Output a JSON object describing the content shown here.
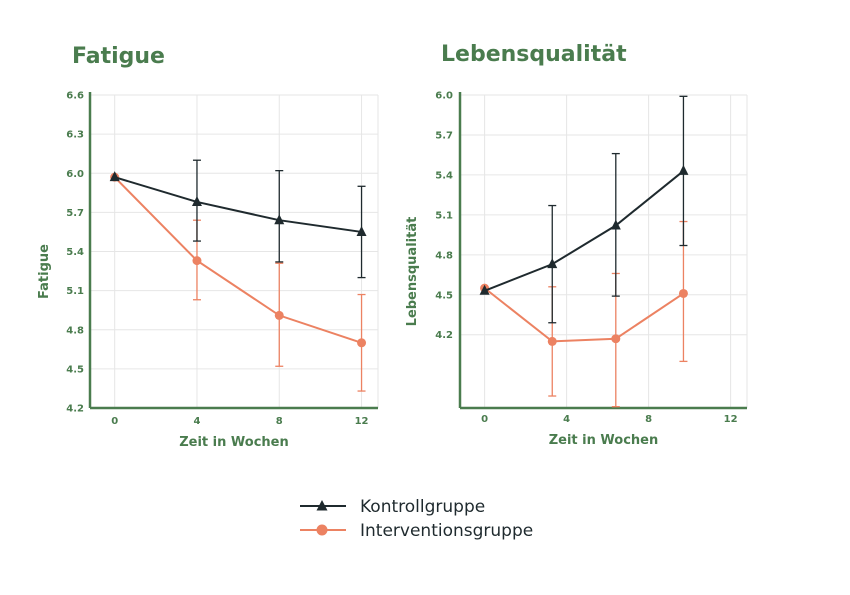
{
  "colors": {
    "accent": "#4a7c4e",
    "kontroll": "#1f2a2e",
    "intervention": "#ec8262",
    "grid": "#e6e6e6"
  },
  "legend": {
    "items": [
      {
        "label": "Kontrollgruppe",
        "marker": "triangle",
        "color": "#1f2a2e"
      },
      {
        "label": "Interventionsgruppe",
        "marker": "circle",
        "color": "#ec8262"
      }
    ]
  },
  "chart_data": [
    {
      "type": "line",
      "title": "Fatigue",
      "xlabel": "Zeit in Wochen",
      "ylabel": "Fatigue",
      "x_ticks": [
        "0",
        "4",
        "8",
        "12"
      ],
      "y_ticks": [
        "4.2",
        "4.5",
        "4.8",
        "5.1",
        "5.4",
        "5.7",
        "6.0",
        "6.3",
        "6.6"
      ],
      "xlim": [
        -1.2,
        12.8
      ],
      "ylim": [
        4.2,
        6.6
      ],
      "grid": true,
      "series": [
        {
          "name": "Kontrollgruppe",
          "marker": "triangle",
          "color": "#1f2a2e",
          "x": [
            0,
            4,
            8,
            12
          ],
          "y": [
            5.97,
            5.78,
            5.64,
            5.55
          ],
          "err_low": [
            null,
            5.48,
            5.32,
            5.2
          ],
          "err_high": [
            null,
            6.1,
            6.02,
            5.9
          ]
        },
        {
          "name": "Interventionsgruppe",
          "marker": "circle",
          "color": "#ec8262",
          "x": [
            0,
            4,
            8,
            12
          ],
          "y": [
            5.97,
            5.33,
            4.91,
            4.7
          ],
          "err_low": [
            null,
            5.03,
            4.52,
            4.33
          ],
          "err_high": [
            null,
            5.64,
            5.31,
            5.07
          ]
        }
      ]
    },
    {
      "type": "line",
      "title": "Lebensqualität",
      "xlabel": "Zeit in Wochen",
      "ylabel": "Lebensqualität",
      "x_ticks": [
        "0",
        "4",
        "8",
        "12"
      ],
      "y_ticks": [
        "4.2",
        "4.5",
        "4.8",
        "5.1",
        "5.4",
        "5.7",
        "6.0"
      ],
      "xlim": [
        -1.2,
        12.8
      ],
      "ylim": [
        3.65,
        6.0
      ],
      "grid": true,
      "series": [
        {
          "name": "Kontrollgruppe",
          "marker": "triangle",
          "color": "#1f2a2e",
          "x": [
            0,
            3.3,
            6.4,
            9.7
          ],
          "y": [
            4.53,
            4.73,
            5.02,
            5.43
          ],
          "err_low": [
            null,
            4.29,
            4.49,
            4.87
          ],
          "err_high": [
            null,
            5.17,
            5.56,
            5.99
          ]
        },
        {
          "name": "Interventionsgruppe",
          "marker": "circle",
          "color": "#ec8262",
          "x": [
            0,
            3.3,
            6.4,
            9.7
          ],
          "y": [
            4.55,
            4.15,
            4.17,
            4.51
          ],
          "err_low": [
            null,
            3.74,
            3.66,
            4.0
          ],
          "err_high": [
            null,
            4.56,
            4.66,
            5.05
          ]
        }
      ]
    }
  ]
}
